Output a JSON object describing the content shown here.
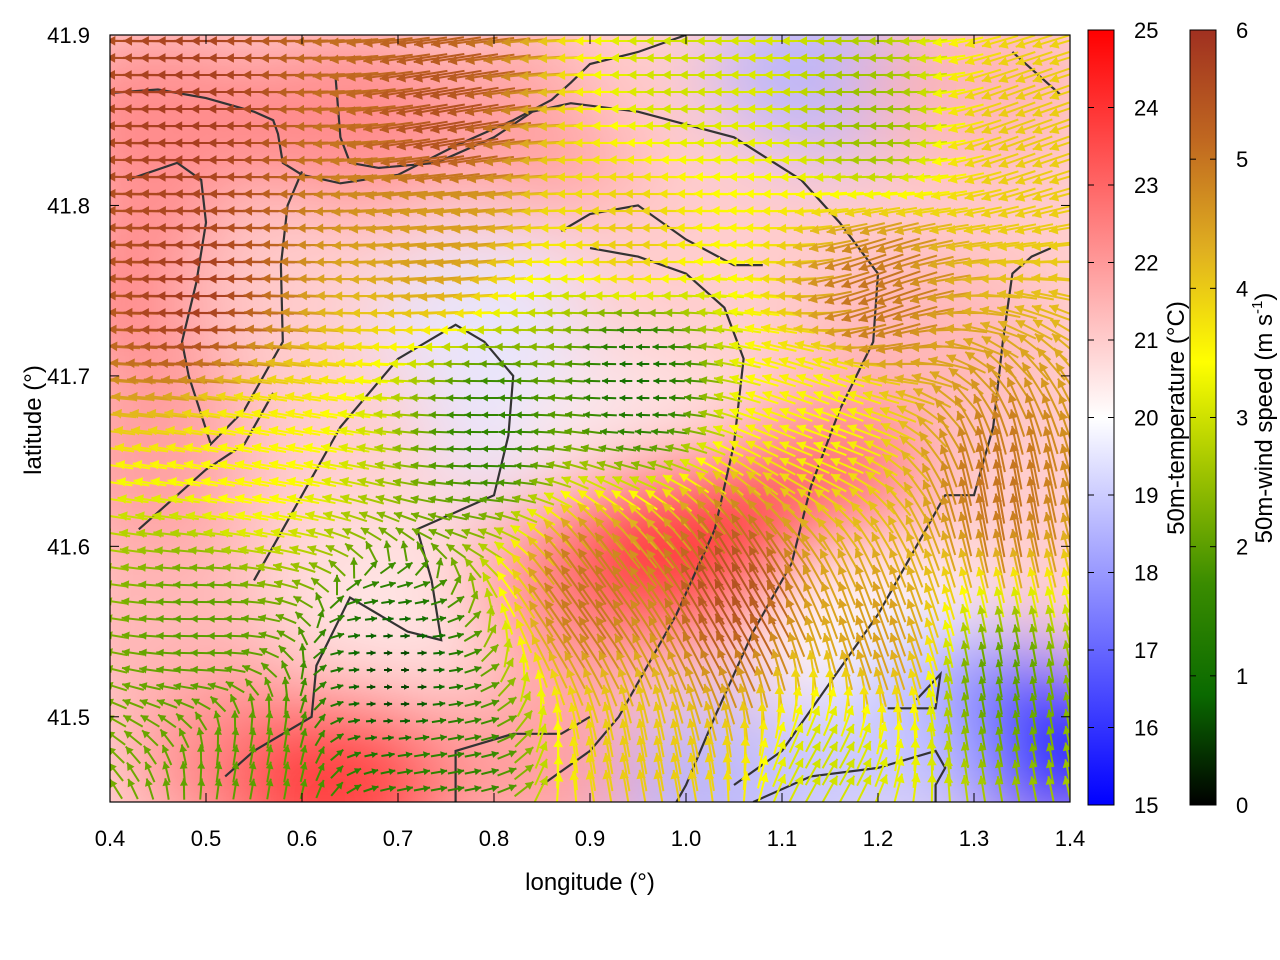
{
  "chart_data": {
    "type": "heatmap",
    "subtype": "temperature field with colored wind-vector overlay and coastline contours",
    "xlabel": "longitude (°)",
    "ylabel": "latitude (°)",
    "xlim": [
      0.4,
      1.4
    ],
    "ylim": [
      41.45,
      41.9
    ],
    "xticks": [
      0.4,
      0.5,
      0.6,
      0.7,
      0.8,
      0.9,
      1.0,
      1.1,
      1.2,
      1.3,
      1.4
    ],
    "xtick_labels": [
      "0.4",
      "0.5",
      "0.6",
      "0.7",
      "0.8",
      "0.9",
      "1.0",
      "1.1",
      "1.2",
      "1.3",
      "1.4"
    ],
    "yticks": [
      41.5,
      41.6,
      41.7,
      41.8,
      41.9
    ],
    "ytick_labels": [
      "41.5",
      "41.6",
      "41.7",
      "41.8",
      "41.9"
    ],
    "grid": false,
    "temperature_colorbar": {
      "label": "50m-temperature (°C)",
      "range": [
        15,
        25
      ],
      "ticks": [
        15,
        16,
        17,
        18,
        19,
        20,
        21,
        22,
        23,
        24,
        25
      ],
      "tick_labels": [
        "15",
        "16",
        "17",
        "18",
        "19",
        "20",
        "21",
        "22",
        "23",
        "24",
        "25"
      ],
      "colors": [
        "#0000ff",
        "#ffffff",
        "#ff0000"
      ]
    },
    "wind_colorbar": {
      "label_main": "50m-wind speed (m s",
      "label_sup": "-1",
      "label_tail": ")",
      "range": [
        0,
        6
      ],
      "ticks": [
        0,
        1,
        2,
        3,
        4,
        5,
        6
      ],
      "tick_labels": [
        "0",
        "1",
        "2",
        "3",
        "4",
        "5",
        "6"
      ],
      "colors": [
        "#000000",
        "#0a6a00",
        "#3a8c00",
        "#9ec300",
        "#ffff00",
        "#e0b020",
        "#c06820",
        "#a03020"
      ]
    },
    "temperature_field": [
      {
        "lon": 0.45,
        "lat": 41.85,
        "value": 22.5
      },
      {
        "lon": 0.65,
        "lat": 41.85,
        "value": 22.5
      },
      {
        "lon": 0.85,
        "lat": 41.85,
        "value": 22.0
      },
      {
        "lon": 1.0,
        "lat": 41.88,
        "value": 21.0
      },
      {
        "lon": 1.15,
        "lat": 41.88,
        "value": 18.5
      },
      {
        "lon": 1.3,
        "lat": 41.87,
        "value": 21.5
      },
      {
        "lon": 0.45,
        "lat": 41.75,
        "value": 22.5
      },
      {
        "lon": 0.6,
        "lat": 41.75,
        "value": 21.0
      },
      {
        "lon": 0.8,
        "lat": 41.73,
        "value": 19.5
      },
      {
        "lon": 1.0,
        "lat": 41.73,
        "value": 21.0
      },
      {
        "lon": 1.25,
        "lat": 41.72,
        "value": 21.5
      },
      {
        "lon": 0.45,
        "lat": 41.65,
        "value": 22.0
      },
      {
        "lon": 0.65,
        "lat": 41.65,
        "value": 21.0
      },
      {
        "lon": 0.85,
        "lat": 41.67,
        "value": 19.5
      },
      {
        "lon": 0.95,
        "lat": 41.66,
        "value": 20.5
      },
      {
        "lon": 1.15,
        "lat": 41.63,
        "value": 23.0
      },
      {
        "lon": 1.35,
        "lat": 41.62,
        "value": 21.0
      },
      {
        "lon": 0.45,
        "lat": 41.55,
        "value": 21.5
      },
      {
        "lon": 0.7,
        "lat": 41.57,
        "value": 20.5
      },
      {
        "lon": 0.9,
        "lat": 41.58,
        "value": 22.5
      },
      {
        "lon": 1.0,
        "lat": 41.6,
        "value": 24.0
      },
      {
        "lon": 1.2,
        "lat": 41.55,
        "value": 20.0
      },
      {
        "lon": 1.3,
        "lat": 41.5,
        "value": 18.0
      },
      {
        "lon": 1.38,
        "lat": 41.48,
        "value": 15.5
      },
      {
        "lon": 0.55,
        "lat": 41.47,
        "value": 22.5
      },
      {
        "lon": 0.65,
        "lat": 41.46,
        "value": 24.0
      },
      {
        "lon": 0.85,
        "lat": 41.47,
        "value": 22.0
      },
      {
        "lon": 1.05,
        "lat": 41.46,
        "value": 18.5
      },
      {
        "lon": 1.2,
        "lat": 41.47,
        "value": 19.0
      }
    ],
    "wind_regions": [
      {
        "lon": 0.5,
        "lat": 41.85,
        "speed": 5.8,
        "direction_deg": 180
      },
      {
        "lon": 0.75,
        "lat": 41.85,
        "speed": 5.5,
        "direction_deg": 190
      },
      {
        "lon": 1.0,
        "lat": 41.88,
        "speed": 3.0,
        "direction_deg": 180
      },
      {
        "lon": 1.2,
        "lat": 41.85,
        "speed": 2.5,
        "direction_deg": 180
      },
      {
        "lon": 1.35,
        "lat": 41.85,
        "speed": 4.0,
        "direction_deg": 200
      },
      {
        "lon": 0.5,
        "lat": 41.75,
        "speed": 5.8,
        "direction_deg": 180
      },
      {
        "lon": 0.75,
        "lat": 41.78,
        "speed": 4.5,
        "direction_deg": 185
      },
      {
        "lon": 0.95,
        "lat": 41.78,
        "speed": 4.0,
        "direction_deg": 180
      },
      {
        "lon": 1.2,
        "lat": 41.75,
        "speed": 5.0,
        "direction_deg": 200
      },
      {
        "lon": 0.55,
        "lat": 41.65,
        "speed": 3.5,
        "direction_deg": 170
      },
      {
        "lon": 0.8,
        "lat": 41.67,
        "speed": 1.5,
        "direction_deg": 180
      },
      {
        "lon": 0.95,
        "lat": 41.7,
        "speed": 1.0,
        "direction_deg": 180
      },
      {
        "lon": 1.15,
        "lat": 41.68,
        "speed": 3.5,
        "direction_deg": 160
      },
      {
        "lon": 1.33,
        "lat": 41.63,
        "speed": 5.0,
        "direction_deg": 100
      },
      {
        "lon": 0.5,
        "lat": 41.55,
        "speed": 2.0,
        "direction_deg": 180
      },
      {
        "lon": 0.7,
        "lat": 41.52,
        "speed": 0.5,
        "direction_deg": 0
      },
      {
        "lon": 0.9,
        "lat": 41.57,
        "speed": 5.0,
        "direction_deg": 125
      },
      {
        "lon": 1.05,
        "lat": 41.57,
        "speed": 5.5,
        "direction_deg": 120
      },
      {
        "lon": 1.2,
        "lat": 41.55,
        "speed": 4.5,
        "direction_deg": 110
      },
      {
        "lon": 1.33,
        "lat": 41.52,
        "speed": 2.0,
        "direction_deg": 100
      },
      {
        "lon": 0.55,
        "lat": 41.47,
        "speed": 2.0,
        "direction_deg": 80
      },
      {
        "lon": 0.75,
        "lat": 41.47,
        "speed": 1.5,
        "direction_deg": 10
      },
      {
        "lon": 0.95,
        "lat": 41.47,
        "speed": 4.0,
        "direction_deg": 100
      },
      {
        "lon": 1.15,
        "lat": 41.47,
        "speed": 3.0,
        "direction_deg": 60
      }
    ],
    "coastlines": [
      [
        [
          0.4,
          41.866
        ],
        [
          0.45,
          41.868
        ],
        [
          0.5,
          41.863
        ],
        [
          0.55,
          41.855
        ],
        [
          0.57,
          41.85
        ],
        [
          0.575,
          41.842
        ],
        [
          0.58,
          41.825
        ],
        [
          0.6,
          41.818
        ],
        [
          0.64,
          41.813
        ],
        [
          0.7,
          41.818
        ],
        [
          0.76,
          41.835
        ],
        [
          0.82,
          41.85
        ],
        [
          0.86,
          41.862
        ],
        [
          0.88,
          41.872
        ],
        [
          0.9,
          41.883
        ],
        [
          0.95,
          41.89
        ],
        [
          1.0,
          41.9
        ]
      ],
      [
        [
          0.418,
          41.815
        ],
        [
          0.47,
          41.825
        ],
        [
          0.495,
          41.815
        ],
        [
          0.5,
          41.79
        ],
        [
          0.49,
          41.755
        ],
        [
          0.475,
          41.72
        ],
        [
          0.482,
          41.7
        ],
        [
          0.505,
          41.66
        ],
        [
          0.54,
          41.68
        ],
        [
          0.58,
          41.72
        ],
        [
          0.578,
          41.765
        ],
        [
          0.585,
          41.8
        ],
        [
          0.6,
          41.82
        ]
      ],
      [
        [
          0.635,
          41.875
        ],
        [
          0.64,
          41.84
        ],
        [
          0.65,
          41.825
        ],
        [
          0.68,
          41.822
        ],
        [
          0.74,
          41.825
        ],
        [
          0.8,
          41.84
        ],
        [
          0.84,
          41.855
        ],
        [
          0.88,
          41.86
        ],
        [
          0.95,
          41.855
        ],
        [
          1.05,
          41.84
        ],
        [
          1.12,
          41.815
        ],
        [
          1.16,
          41.79
        ],
        [
          1.2,
          41.76
        ],
        [
          1.195,
          41.72
        ],
        [
          1.16,
          41.68
        ],
        [
          1.13,
          41.635
        ],
        [
          1.11,
          41.59
        ],
        [
          1.07,
          41.55
        ],
        [
          1.03,
          41.5
        ],
        [
          1.0,
          41.46
        ],
        [
          0.99,
          41.45
        ]
      ],
      [
        [
          0.55,
          41.58
        ],
        [
          0.6,
          41.63
        ],
        [
          0.64,
          41.67
        ],
        [
          0.7,
          41.71
        ],
        [
          0.76,
          41.73
        ],
        [
          0.79,
          41.72
        ],
        [
          0.82,
          41.7
        ],
        [
          0.815,
          41.665
        ],
        [
          0.8,
          41.63
        ],
        [
          0.76,
          41.62
        ],
        [
          0.72,
          41.61
        ],
        [
          0.735,
          41.58
        ],
        [
          0.745,
          41.545
        ],
        [
          0.71,
          41.55
        ],
        [
          0.65,
          41.57
        ],
        [
          0.615,
          41.53
        ],
        [
          0.61,
          41.5
        ],
        [
          0.55,
          41.48
        ],
        [
          0.52,
          41.465
        ]
      ],
      [
        [
          0.43,
          41.61
        ],
        [
          0.47,
          41.63
        ],
        [
          0.5,
          41.645
        ],
        [
          0.54,
          41.66
        ],
        [
          0.57,
          41.69
        ]
      ],
      [
        [
          0.87,
          41.785
        ],
        [
          0.9,
          41.795
        ],
        [
          0.95,
          41.8
        ],
        [
          1.0,
          41.78
        ],
        [
          1.05,
          41.765
        ],
        [
          1.08,
          41.765
        ]
      ],
      [
        [
          0.85,
          41.46
        ],
        [
          0.9,
          41.48
        ],
        [
          0.93,
          41.5
        ],
        [
          0.96,
          41.53
        ],
        [
          0.99,
          41.56
        ],
        [
          1.03,
          41.61
        ],
        [
          1.05,
          41.66
        ],
        [
          1.06,
          41.71
        ],
        [
          1.04,
          41.74
        ],
        [
          1.0,
          41.76
        ],
        [
          0.95,
          41.77
        ],
        [
          0.9,
          41.775
        ]
      ],
      [
        [
          0.76,
          41.45
        ],
        [
          0.76,
          41.48
        ],
        [
          0.82,
          41.49
        ],
        [
          0.87,
          41.49
        ],
        [
          0.9,
          41.5
        ]
      ],
      [
        [
          1.05,
          41.46
        ],
        [
          1.1,
          41.48
        ],
        [
          1.15,
          41.52
        ],
        [
          1.2,
          41.56
        ],
        [
          1.24,
          41.6
        ],
        [
          1.27,
          41.63
        ],
        [
          1.3,
          41.63
        ],
        [
          1.32,
          41.67
        ],
        [
          1.33,
          41.72
        ],
        [
          1.34,
          41.76
        ],
        [
          1.36,
          41.77
        ],
        [
          1.38,
          41.775
        ]
      ],
      [
        [
          1.07,
          41.45
        ],
        [
          1.13,
          41.465
        ],
        [
          1.2,
          41.47
        ],
        [
          1.26,
          41.48
        ],
        [
          1.27,
          41.47
        ],
        [
          1.26,
          41.46
        ],
        [
          1.26,
          41.45
        ]
      ],
      [
        [
          1.21,
          41.505
        ],
        [
          1.26,
          41.505
        ],
        [
          1.265,
          41.525
        ],
        [
          1.24,
          41.51
        ]
      ],
      [
        [
          1.34,
          41.89
        ],
        [
          1.37,
          41.875
        ],
        [
          1.39,
          41.865
        ]
      ]
    ]
  }
}
